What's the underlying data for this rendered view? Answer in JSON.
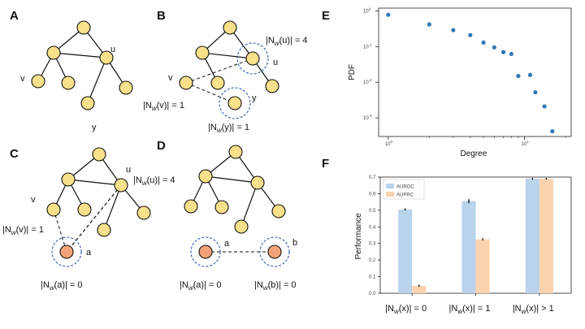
{
  "panels": {
    "a": {
      "letter": "A",
      "labels": {
        "u": "u",
        "v": "v",
        "y": "y"
      }
    },
    "b": {
      "letter": "B",
      "labels": {
        "u": "u",
        "v": "v",
        "y": "y"
      },
      "eq_u": {
        "pre": "|N",
        "sub": "w",
        "post": "(u)| = 4"
      },
      "eq_v": {
        "pre": "|N",
        "sub": "w",
        "post": "(v)| = 1"
      },
      "eq_y": {
        "pre": "|N",
        "sub": "w",
        "post": "(y)| = 1"
      }
    },
    "c": {
      "letter": "C",
      "labels": {
        "u": "u",
        "v": "v",
        "a": "a"
      },
      "eq_u": {
        "pre": "|N",
        "sub": "w",
        "post": "(u)| = 4"
      },
      "eq_v": {
        "pre": "|N",
        "sub": "w",
        "post": "(v)| = 1"
      },
      "eq_a": {
        "pre": "|N",
        "sub": "w",
        "post": "(a)| = 0"
      }
    },
    "d": {
      "letter": "D",
      "labels": {
        "a": "a",
        "b": "b"
      },
      "eq_a": {
        "pre": "|N",
        "sub": "w",
        "post": "(a)| = 0"
      },
      "eq_b": {
        "pre": "|N",
        "sub": "w",
        "post": "(b)| = 0"
      }
    },
    "e": {
      "letter": "E"
    },
    "f": {
      "letter": "F"
    }
  },
  "colors": {
    "node_fill": "#f9e08b",
    "node_new_fill": "#f2a27a",
    "circle_dash": "#3a5aa8",
    "point": "#2f78b5",
    "auroc": "#b8d3ea",
    "auprc": "#fbd3ae"
  },
  "chart_data": [
    {
      "type": "scatter",
      "panel": "E",
      "xlabel": "Degree",
      "ylabel": "PDF",
      "x_scale": "log",
      "y_scale": "log",
      "xlim": [
        0.85,
        22
      ],
      "ylim": [
        0.0003,
        1.2
      ],
      "x_ticks": [
        {
          "value": 1,
          "base": "10",
          "exp": "0"
        },
        {
          "value": 10,
          "base": "10",
          "exp": "1"
        }
      ],
      "y_ticks": [
        {
          "value": 1,
          "base": "10",
          "exp": "0"
        },
        {
          "value": 0.1,
          "base": "10",
          "exp": "-1"
        },
        {
          "value": 0.01,
          "base": "10",
          "exp": "-2"
        },
        {
          "value": 0.001,
          "base": "10",
          "exp": "-3"
        }
      ],
      "points": [
        {
          "x": 1,
          "y": 0.78
        },
        {
          "x": 2,
          "y": 0.42
        },
        {
          "x": 3,
          "y": 0.29
        },
        {
          "x": 4,
          "y": 0.21
        },
        {
          "x": 5,
          "y": 0.13
        },
        {
          "x": 6,
          "y": 0.095
        },
        {
          "x": 7,
          "y": 0.07
        },
        {
          "x": 8,
          "y": 0.062
        },
        {
          "x": 9,
          "y": 0.015
        },
        {
          "x": 11,
          "y": 0.016
        },
        {
          "x": 12,
          "y": 0.0052
        },
        {
          "x": 14,
          "y": 0.0021
        },
        {
          "x": 16,
          "y": 0.00042
        }
      ]
    },
    {
      "type": "bar",
      "panel": "F",
      "ylabel": "Performance",
      "ylim": [
        0,
        0.7
      ],
      "y_ticks": [
        "0.0",
        "0.1",
        "0.2",
        "0.3",
        "0.4",
        "0.5",
        "0.6",
        "0.7"
      ],
      "categories": [
        {
          "pre": "|N",
          "sub": "w",
          "post": "(x)| = 0"
        },
        {
          "pre": "|N",
          "sub": "w",
          "post": "(x)| = 1"
        },
        {
          "pre": "|N",
          "sub": "w",
          "post": "(x)| > 1"
        }
      ],
      "series": [
        {
          "name": "AUROC",
          "values": [
            0.505,
            0.555,
            0.69
          ],
          "errors": [
            0.006,
            0.012,
            0.005
          ]
        },
        {
          "name": "AUPRC",
          "values": [
            0.045,
            0.325,
            0.69
          ],
          "errors": [
            0.006,
            0.006,
            0.005
          ]
        }
      ],
      "legend": "top-left"
    }
  ]
}
